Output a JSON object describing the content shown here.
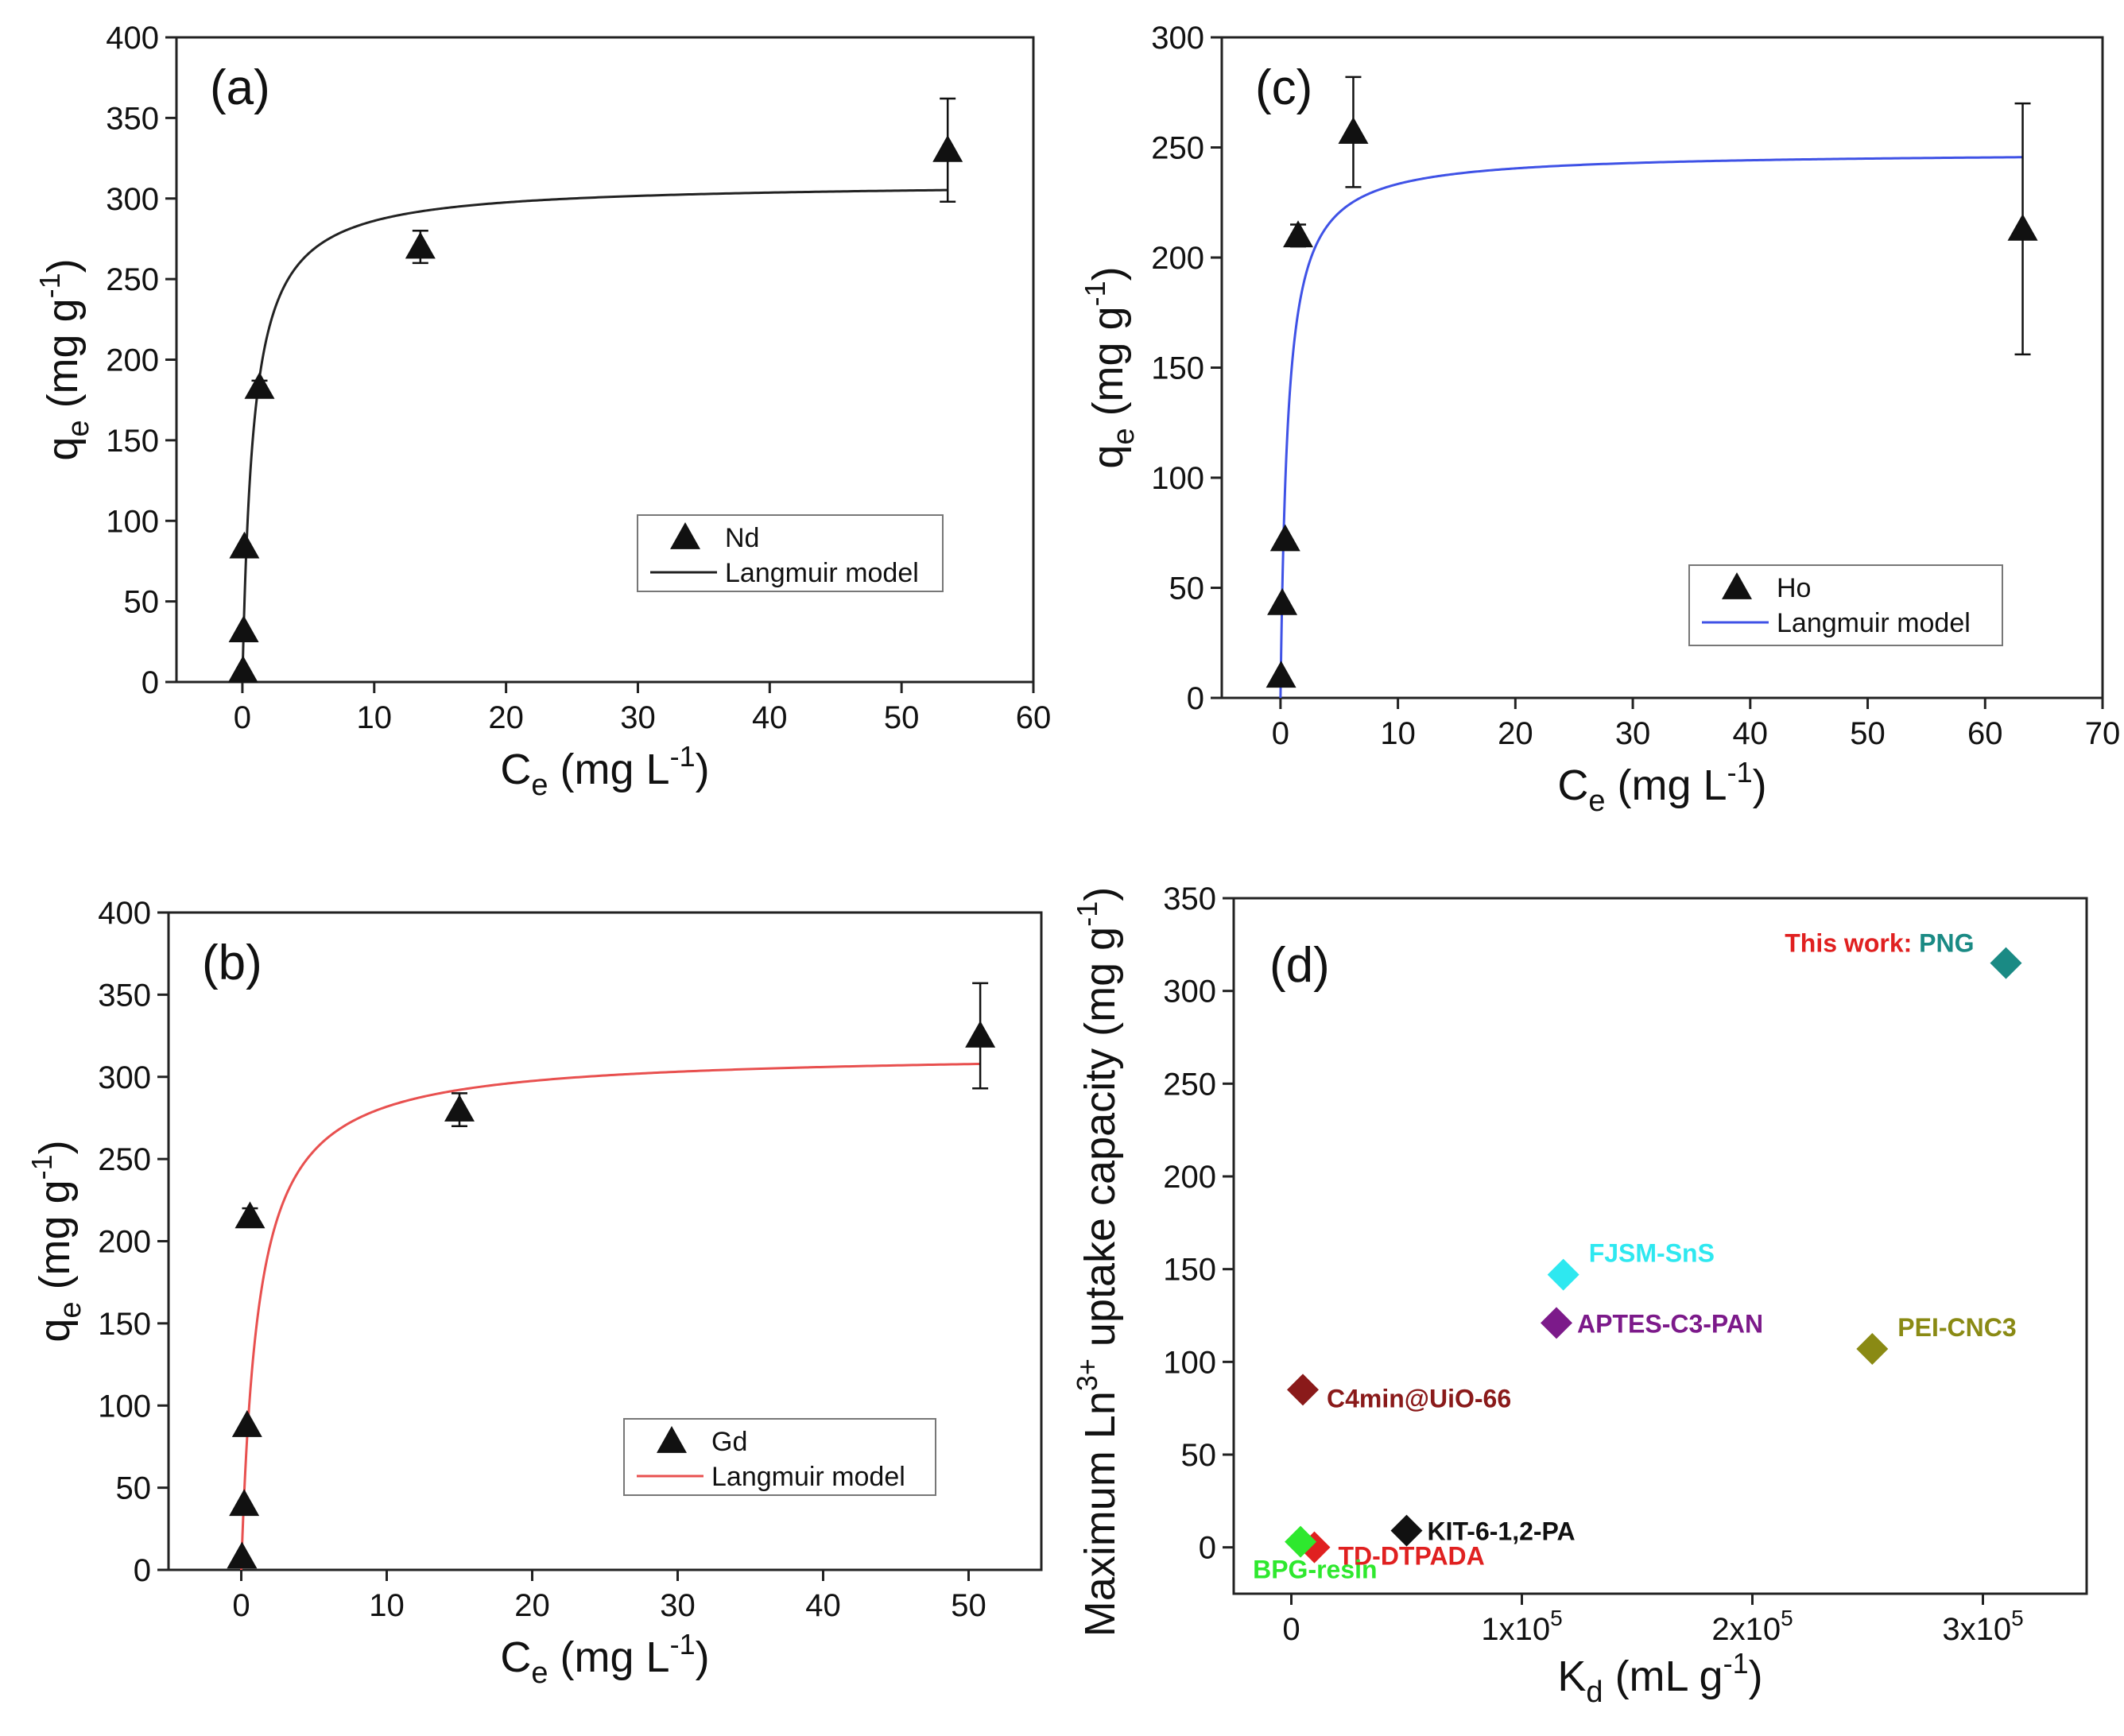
{
  "chart_data": [
    {
      "id": "a",
      "type": "scatter",
      "panel_label": "(a)",
      "xlabel": {
        "main": "C",
        "sub": "e",
        "rest": " (mg L",
        "sup": "-1",
        "close": ")"
      },
      "ylabel": {
        "main": "q",
        "sub": "e",
        "rest": " (mg g",
        "sup": "-1",
        "close": ")"
      },
      "xlim": [
        -5,
        60
      ],
      "ylim": [
        0,
        400
      ],
      "xticks": [
        0,
        10,
        20,
        30,
        40,
        50,
        60
      ],
      "yticks": [
        0,
        50,
        100,
        150,
        200,
        250,
        300,
        350,
        400
      ],
      "xtick_labels": [
        "0",
        "10",
        "20",
        "30",
        "40",
        "50",
        "60"
      ],
      "ytick_labels": [
        "0",
        "50",
        "100",
        "150",
        "200",
        "250",
        "300",
        "350",
        "400"
      ],
      "series": [
        {
          "name": "Nd",
          "marker": "triangle",
          "color": "#111111",
          "points": [
            {
              "x": 0.05,
              "y": 7
            },
            {
              "x": 0.1,
              "y": 32
            },
            {
              "x": 0.15,
              "y": 84
            },
            {
              "x": 1.3,
              "y": 183,
              "err": 4
            },
            {
              "x": 13.5,
              "y": 270,
              "err": 10
            },
            {
              "x": 53.5,
              "y": 330,
              "err": 32
            }
          ]
        }
      ],
      "fit": {
        "name": "Langmuir model",
        "color": "#222222",
        "qmax": 310,
        "K": 1.2,
        "x_start": 0,
        "x_end": 53.5
      }
    },
    {
      "id": "b",
      "type": "scatter",
      "panel_label": "(b)",
      "xlabel": {
        "main": "C",
        "sub": "e",
        "rest": " (mg L",
        "sup": "-1",
        "close": ")"
      },
      "ylabel": {
        "main": "q",
        "sub": "e",
        "rest": " (mg g",
        "sup": "-1",
        "close": ")"
      },
      "xlim": [
        -5,
        55
      ],
      "ylim": [
        0,
        400
      ],
      "xticks": [
        0,
        10,
        20,
        30,
        40,
        50
      ],
      "yticks": [
        0,
        50,
        100,
        150,
        200,
        250,
        300,
        350,
        400
      ],
      "xtick_labels": [
        "0",
        "10",
        "20",
        "30",
        "40",
        "50"
      ],
      "ytick_labels": [
        "0",
        "50",
        "100",
        "150",
        "200",
        "250",
        "300",
        "350",
        "400"
      ],
      "series": [
        {
          "name": "Gd",
          "marker": "triangle",
          "color": "#111111",
          "points": [
            {
              "x": 0.05,
              "y": 8
            },
            {
              "x": 0.2,
              "y": 40
            },
            {
              "x": 0.4,
              "y": 88
            },
            {
              "x": 0.6,
              "y": 215,
              "err": 5
            },
            {
              "x": 15,
              "y": 280,
              "err": 10
            },
            {
              "x": 50.8,
              "y": 325,
              "err": 32
            }
          ]
        }
      ],
      "fit": {
        "name": "Langmuir model",
        "color": "#e8504f",
        "qmax": 315,
        "K": 0.85,
        "x_start": 0,
        "x_end": 50.8
      }
    },
    {
      "id": "c",
      "type": "scatter",
      "panel_label": "(c)",
      "xlabel": {
        "main": "C",
        "sub": "e",
        "rest": " (mg L",
        "sup": "-1",
        "close": ")"
      },
      "ylabel": {
        "main": "q",
        "sub": "e",
        "rest": " (mg g",
        "sup": "-1",
        "close": ")"
      },
      "xlim": [
        -5,
        70
      ],
      "ylim": [
        0,
        300
      ],
      "xticks": [
        0,
        10,
        20,
        30,
        40,
        50,
        60,
        70
      ],
      "yticks": [
        0,
        50,
        100,
        150,
        200,
        250,
        300
      ],
      "xtick_labels": [
        "0",
        "10",
        "20",
        "30",
        "40",
        "50",
        "60",
        "70"
      ],
      "ytick_labels": [
        "0",
        "50",
        "100",
        "150",
        "200",
        "250",
        "300"
      ],
      "series": [
        {
          "name": "Ho",
          "marker": "triangle",
          "color": "#111111",
          "points": [
            {
              "x": 0.05,
              "y": 10
            },
            {
              "x": 0.15,
              "y": 43
            },
            {
              "x": 0.4,
              "y": 72
            },
            {
              "x": 1.5,
              "y": 210,
              "err": 5
            },
            {
              "x": 6.2,
              "y": 257,
              "err": 25
            },
            {
              "x": 63.2,
              "y": 213,
              "err": 57
            }
          ]
        }
      ],
      "fit": {
        "name": "Langmuir model",
        "color": "#3f52e6",
        "qmax": 248,
        "K": 1.6,
        "x_start": 0,
        "x_end": 63.2
      }
    },
    {
      "id": "d",
      "type": "scatter",
      "panel_label": "(d)",
      "xlabel": {
        "main": "K",
        "sub": "d",
        "rest": " (mL g",
        "sup": "-1",
        "close": ")"
      },
      "ylabel_text": "Maximum Ln",
      "ylabel_sup": "3+",
      "ylabel_rest": " uptake capacity (mg g",
      "ylabel_sup2": "-1",
      "ylabel_close": ")",
      "xlim": [
        -25000,
        345000
      ],
      "ylim": [
        -25,
        350
      ],
      "xticks": [
        0,
        100000,
        200000,
        300000
      ],
      "yticks": [
        0,
        50,
        100,
        150,
        200,
        250,
        300,
        350
      ],
      "xtick_labels": [
        {
          "base": "0",
          "exp": ""
        },
        {
          "base": "1x10",
          "exp": "5"
        },
        {
          "base": "2x10",
          "exp": "5"
        },
        {
          "base": "3x10",
          "exp": "5"
        }
      ],
      "ytick_labels": [
        "0",
        "50",
        "100",
        "150",
        "200",
        "250",
        "300",
        "350"
      ],
      "series": [
        {
          "name": "PNG",
          "x": 310000,
          "y": 315,
          "color": "#1a8a84",
          "label_prefix": "This work: ",
          "prefix_color": "#e02020",
          "label_side": "left"
        },
        {
          "name": "FJSM-SnS",
          "x": 118000,
          "y": 147,
          "color": "#2ee8f0",
          "label_side": "right-up"
        },
        {
          "name": "APTES-C3-PAN",
          "x": 115000,
          "y": 121,
          "color": "#7c1a8a",
          "label_side": "right"
        },
        {
          "name": "PEI-CNC3",
          "x": 252000,
          "y": 107,
          "color": "#8a8a14",
          "label_side": "right-up"
        },
        {
          "name": "C4min@UiO-66",
          "x": 5000,
          "y": 85,
          "color": "#8a1a1a",
          "label_side": "right-down"
        },
        {
          "name": "KIT-6-1,2-PA",
          "x": 50000,
          "y": 9,
          "color": "#111111",
          "label_side": "right"
        },
        {
          "name": "TD-DTPADA",
          "x": 10000,
          "y": 0,
          "color": "#e02020",
          "label_side": "right-down"
        },
        {
          "name": "BPG-resin",
          "x": 4000,
          "y": 3,
          "color": "#2ee82e",
          "label_side": "below"
        }
      ]
    }
  ]
}
